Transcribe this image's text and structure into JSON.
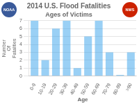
{
  "chart_data": {
    "type": "bar",
    "title": "2014 U.S. Flood Fatalities",
    "subtitle": "Ages of Victims",
    "x_label": "Age",
    "y_label": "Number\nOf\nFatalities",
    "categories": [
      "0-9",
      "10-19",
      "20-29",
      "30-39",
      "40-49",
      "50-59",
      "60-69",
      "70-79",
      "80-89",
      ">90"
    ],
    "values": [
      7,
      2,
      6,
      7,
      1,
      5,
      7,
      3,
      0.15,
      3
    ],
    "ylim": [
      0,
      7
    ],
    "yticks": [
      0,
      1,
      2,
      3,
      4,
      5,
      6,
      7
    ],
    "grid": true,
    "annotations": [
      "NOAA",
      "NWS"
    ]
  }
}
